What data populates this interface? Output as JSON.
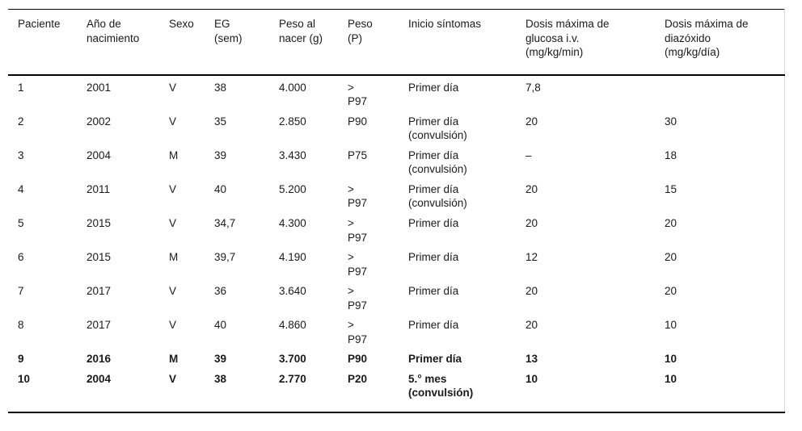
{
  "colors": {
    "text": "#1a1a1a",
    "border_strong": "#000000",
    "border_light": "#d9d9d9",
    "background": "#ffffff"
  },
  "table": {
    "columns": [
      "Paciente",
      "Año de\nnacimiento",
      "Sexo",
      "EG\n(sem)",
      "Peso al\nnacer (g)",
      "Peso\n(P)",
      "Inicio síntomas",
      "Dosis máxima de\nglucosa i.v.\n(mg/kg/min)",
      "Dosis máxima de\ndiazóxido\n(mg/kg/día)"
    ],
    "rows": [
      {
        "bold": false,
        "cells": [
          "1",
          "2001",
          "V",
          "38",
          "4.000",
          ">\nP97",
          "Primer día",
          "7,8",
          ""
        ]
      },
      {
        "bold": false,
        "cells": [
          "2",
          "2002",
          "V",
          "35",
          "2.850",
          "P90",
          "Primer día\n(convulsión)",
          "20",
          "30"
        ]
      },
      {
        "bold": false,
        "cells": [
          "3",
          "2004",
          "M",
          "39",
          "3.430",
          "P75",
          "Primer día\n(convulsión)",
          "–",
          "18"
        ]
      },
      {
        "bold": false,
        "cells": [
          "4",
          "2011",
          "V",
          "40",
          "5.200",
          ">\nP97",
          "Primer día\n(convulsión)",
          "20",
          "15"
        ]
      },
      {
        "bold": false,
        "cells": [
          "5",
          "2015",
          "V",
          "34,7",
          "4.300",
          ">\nP97",
          "Primer día",
          "20",
          "20"
        ]
      },
      {
        "bold": false,
        "cells": [
          "6",
          "2015",
          "M",
          "39,7",
          "4.190",
          ">\nP97",
          "Primer día",
          "12",
          "20"
        ]
      },
      {
        "bold": false,
        "cells": [
          "7",
          "2017",
          "V",
          "36",
          "3.640",
          ">\nP97",
          "Primer día",
          "20",
          "20"
        ]
      },
      {
        "bold": false,
        "cells": [
          "8",
          "2017",
          "V",
          "40",
          "4.860",
          ">\nP97",
          "Primer día",
          "20",
          "10"
        ]
      },
      {
        "bold": true,
        "cells": [
          "9",
          "2016",
          "M",
          "39",
          "3.700",
          "P90",
          "Primer día",
          "13",
          "10"
        ]
      },
      {
        "bold": true,
        "cells": [
          "10",
          "2004",
          "V",
          "38",
          "2.770",
          "P20",
          "5.° mes\n(convulsión)",
          "10",
          "10"
        ]
      }
    ]
  }
}
